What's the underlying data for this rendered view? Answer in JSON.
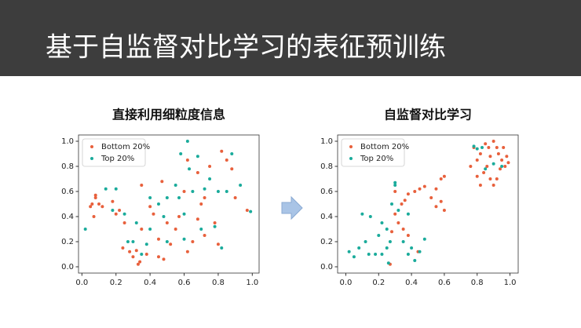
{
  "slide_title": "基于自监督对比学习的表征预训练",
  "chart_data": [
    {
      "type": "scatter",
      "title": "直接利用细粒度信息",
      "legend": "upper left",
      "xlim": [
        -0.02,
        1.04
      ],
      "ylim": [
        -0.05,
        1.05
      ],
      "xticks": [
        {
          "value": 0,
          "label": "0.0"
        },
        0.2,
        0.4,
        0.6,
        0.8,
        {
          "value": 1,
          "label": "1.0"
        }
      ],
      "yticks": [
        {
          "value": 0,
          "label": "0.0"
        },
        0.2,
        0.4,
        0.6,
        0.8,
        {
          "value": 1,
          "label": "1.0"
        }
      ],
      "series": [
        {
          "name": "Bottom 20%",
          "color": "#e8603c",
          "x": [
            0.05,
            0.06,
            0.08,
            0.08,
            0.1,
            0.12,
            0.07,
            0.18,
            0.2,
            0.22,
            0.24,
            0.25,
            0.28,
            0.3,
            0.32,
            0.33,
            0.34,
            0.35,
            0.38,
            0.4,
            0.42,
            0.45,
            0.48,
            0.5,
            0.52,
            0.55,
            0.57,
            0.6,
            0.62,
            0.65,
            0.68,
            0.7,
            0.72,
            0.75,
            0.78,
            0.82,
            0.85,
            0.88,
            0.9,
            0.97,
            0.35,
            0.45,
            0.72,
            0.8,
            0.47,
            0.62,
            0.68
          ],
          "values": [
            0.48,
            0.5,
            0.55,
            0.57,
            0.5,
            0.48,
            0.4,
            0.52,
            0.42,
            0.45,
            0.15,
            0.35,
            0.12,
            0.08,
            0.13,
            0.02,
            0.04,
            0.3,
            0.1,
            0.48,
            0.42,
            0.08,
            0.06,
            0.35,
            0.18,
            0.3,
            0.4,
            0.6,
            0.12,
            0.2,
            0.75,
            0.5,
            0.55,
            0.8,
            0.35,
            0.92,
            0.85,
            0.78,
            0.55,
            0.45,
            0.65,
            0.22,
            0.25,
            0.18,
            0.68,
            0.85,
            0.38
          ]
        },
        {
          "name": "Top 20%",
          "color": "#1aab9b",
          "x": [
            0.02,
            0.14,
            0.18,
            0.2,
            0.25,
            0.27,
            0.3,
            0.32,
            0.35,
            0.38,
            0.4,
            0.45,
            0.48,
            0.5,
            0.5,
            0.55,
            0.57,
            0.58,
            0.6,
            0.62,
            0.63,
            0.65,
            0.68,
            0.7,
            0.72,
            0.75,
            0.78,
            0.8,
            0.82,
            0.85,
            0.88,
            0.93,
            0.99,
            0.6,
            0.4
          ],
          "values": [
            0.3,
            0.62,
            0.45,
            0.62,
            0.42,
            0.2,
            0.2,
            0.35,
            0.1,
            0.18,
            0.3,
            0.5,
            0.4,
            0.55,
            0.2,
            0.65,
            0.55,
            0.9,
            0.42,
            1.0,
            0.78,
            0.6,
            0.88,
            0.3,
            0.62,
            0.7,
            0.32,
            0.6,
            0.15,
            0.6,
            0.9,
            0.65,
            0.44,
            0.22,
            0.55
          ]
        }
      ]
    },
    {
      "type": "scatter",
      "title": "自监督对比学习",
      "legend": "upper left",
      "xlim": [
        -0.05,
        1.05
      ],
      "ylim": [
        -0.05,
        1.05
      ],
      "xticks": [
        {
          "value": 0,
          "label": "0.0"
        },
        0.2,
        0.4,
        0.6,
        0.8,
        {
          "value": 1,
          "label": "1.0"
        }
      ],
      "yticks": [
        {
          "value": 0,
          "label": "0.0"
        },
        0.2,
        0.4,
        0.6,
        0.8,
        {
          "value": 1,
          "label": "1.0"
        }
      ],
      "series": [
        {
          "name": "Bottom 20%",
          "color": "#e8603c",
          "x": [
            0.78,
            0.8,
            0.82,
            0.85,
            0.87,
            0.88,
            0.9,
            0.92,
            0.93,
            0.95,
            0.97,
            0.98,
            0.96,
            0.86,
            0.84,
            0.88,
            0.9,
            0.92,
            0.94,
            0.99,
            0.76,
            0.8,
            0.82,
            0.6,
            0.58,
            0.55,
            0.52,
            0.55,
            0.6,
            0.58,
            0.45,
            0.42,
            0.38,
            0.36,
            0.34,
            0.32,
            0.3,
            0.28,
            0.35,
            0.38,
            0.27,
            0.44,
            0.48,
            0.3
          ],
          "values": [
            0.95,
            0.85,
            0.9,
            0.98,
            0.95,
            0.88,
            1.0,
            0.95,
            0.9,
            0.85,
            0.8,
            0.88,
            0.95,
            0.8,
            0.75,
            0.7,
            0.65,
            0.7,
            0.78,
            0.83,
            0.8,
            0.72,
            0.65,
            0.72,
            0.7,
            0.62,
            0.55,
            0.48,
            0.45,
            0.52,
            0.62,
            0.6,
            0.58,
            0.53,
            0.5,
            0.35,
            0.42,
            0.28,
            0.3,
            0.25,
            0.02,
            0.12,
            0.64,
            0.6
          ]
        },
        {
          "name": "Top 20%",
          "color": "#1aab9b",
          "x": [
            0.02,
            0.05,
            0.08,
            0.1,
            0.12,
            0.14,
            0.15,
            0.18,
            0.2,
            0.22,
            0.25,
            0.25,
            0.27,
            0.28,
            0.3,
            0.3,
            0.32,
            0.35,
            0.38,
            0.4,
            0.42,
            0.45,
            0.48,
            0.26,
            0.78,
            0.8,
            0.85,
            0.95,
            0.9,
            0.83,
            0.22,
            0.38
          ],
          "values": [
            0.12,
            0.08,
            0.15,
            0.42,
            0.2,
            0.1,
            0.4,
            0.1,
            0.25,
            0.1,
            0.15,
            0.3,
            0.2,
            0.5,
            0.67,
            0.65,
            0.45,
            0.2,
            0.1,
            0.15,
            0.05,
            0.12,
            0.22,
            0.03,
            0.96,
            0.94,
            0.78,
            0.8,
            0.82,
            0.95,
            0.35,
            0.42
          ]
        }
      ]
    }
  ]
}
